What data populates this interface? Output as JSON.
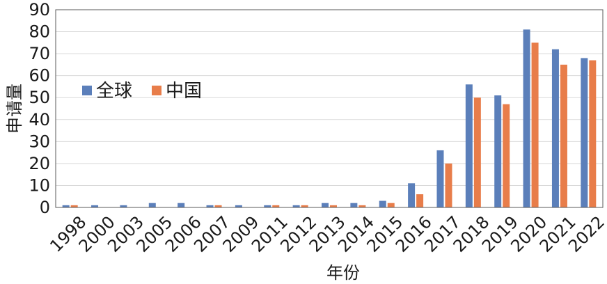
{
  "chart_data": {
    "type": "bar",
    "title": "",
    "xlabel": "年份",
    "ylabel": "申请量",
    "ylim": [
      0,
      90
    ],
    "yticks": [
      0,
      10,
      20,
      30,
      40,
      50,
      60,
      70,
      80,
      90
    ],
    "grid": true,
    "legend_position": "left-middle",
    "categories": [
      "1998",
      "2000",
      "2003",
      "2005",
      "2006",
      "2007",
      "2009",
      "2011",
      "2012",
      "2013",
      "2014",
      "2015",
      "2016",
      "2017",
      "2018",
      "2019",
      "2020",
      "2021",
      "2022"
    ],
    "series": [
      {
        "name": "全球",
        "color": "#5b7fba",
        "values": [
          1,
          1,
          1,
          2,
          2,
          1,
          1,
          1,
          1,
          2,
          2,
          3,
          11,
          26,
          56,
          51,
          81,
          72,
          68
        ]
      },
      {
        "name": "中国",
        "color": "#e87d4a",
        "values": [
          1,
          0,
          0,
          0,
          0,
          1,
          0,
          1,
          1,
          1,
          1,
          2,
          6,
          20,
          50,
          47,
          75,
          65,
          67
        ]
      }
    ]
  }
}
